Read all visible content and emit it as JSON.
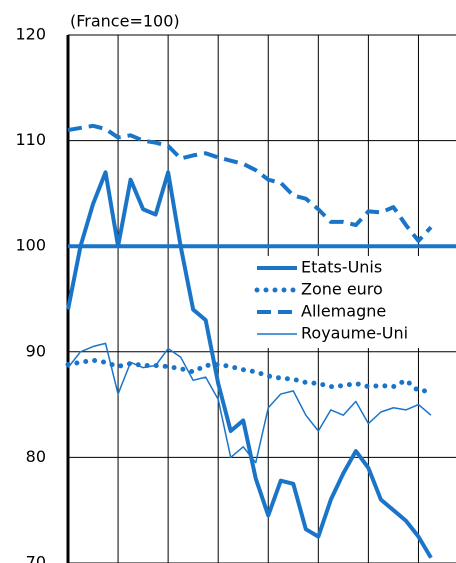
{
  "chart_data": {
    "type": "line",
    "title": "(France=100)",
    "x": [
      0,
      1,
      2,
      3,
      4,
      5,
      6,
      7,
      8,
      9,
      10,
      11,
      12,
      13,
      14,
      15,
      16,
      17,
      18,
      19,
      20,
      21,
      22,
      23,
      24,
      25,
      26,
      27,
      28,
      29
    ],
    "xlim": [
      0,
      31
    ],
    "xticks": [
      0,
      4,
      8,
      12,
      16,
      20,
      24,
      28
    ],
    "ylim": [
      70,
      120
    ],
    "yticks": [
      70,
      80,
      90,
      100,
      110,
      120
    ],
    "grid": true,
    "reference_line": 100,
    "reference_color": "#1a75c9",
    "legend": "center-right",
    "series": [
      {
        "name": "Etats-Unis",
        "color": "#1a75c9",
        "style": "solid-thick",
        "values": [
          94,
          100,
          104,
          107,
          100,
          106.3,
          103.5,
          103,
          107,
          100,
          94,
          93,
          87,
          82.5,
          83.5,
          78,
          74.5,
          77.8,
          77.5,
          73.2,
          72.5,
          76,
          78.5,
          80.6,
          79,
          76,
          75,
          74,
          72.5,
          70.5
        ]
      },
      {
        "name": "Zone euro",
        "color": "#1a75c9",
        "style": "dotted",
        "values": [
          88.8,
          89,
          89.2,
          89,
          88.6,
          88.9,
          88.7,
          88.7,
          88.6,
          88.4,
          88.1,
          88.7,
          88.8,
          88.6,
          88.3,
          88.1,
          87.7,
          87.5,
          87.4,
          87.1,
          87,
          86.7,
          86.8,
          87,
          86.7,
          86.8,
          86.7,
          87.3,
          86.3,
          86.3
        ]
      },
      {
        "name": "Allemagne",
        "color": "#1a75c9",
        "style": "dashed",
        "values": [
          111,
          111.2,
          111.4,
          111.1,
          110.3,
          110.5,
          110,
          109.8,
          109.5,
          108.3,
          108.6,
          108.8,
          108.4,
          108.1,
          107.8,
          107.2,
          106.3,
          106,
          104.8,
          104.5,
          103.5,
          102.3,
          102.3,
          102,
          103.3,
          103.2,
          103.7,
          102,
          100.5,
          101.8
        ]
      },
      {
        "name": "Royaume-Uni",
        "color": "#1a75c9",
        "style": "thin",
        "values": [
          88.5,
          90,
          90.5,
          90.8,
          86,
          89,
          88.5,
          88.7,
          90.3,
          89.5,
          87.3,
          87.6,
          85.5,
          80,
          81,
          79.5,
          84.7,
          86,
          86.3,
          84,
          82.5,
          84.5,
          84,
          85.3,
          83.2,
          84.3,
          84.7,
          84.5,
          85,
          84
        ]
      }
    ]
  }
}
